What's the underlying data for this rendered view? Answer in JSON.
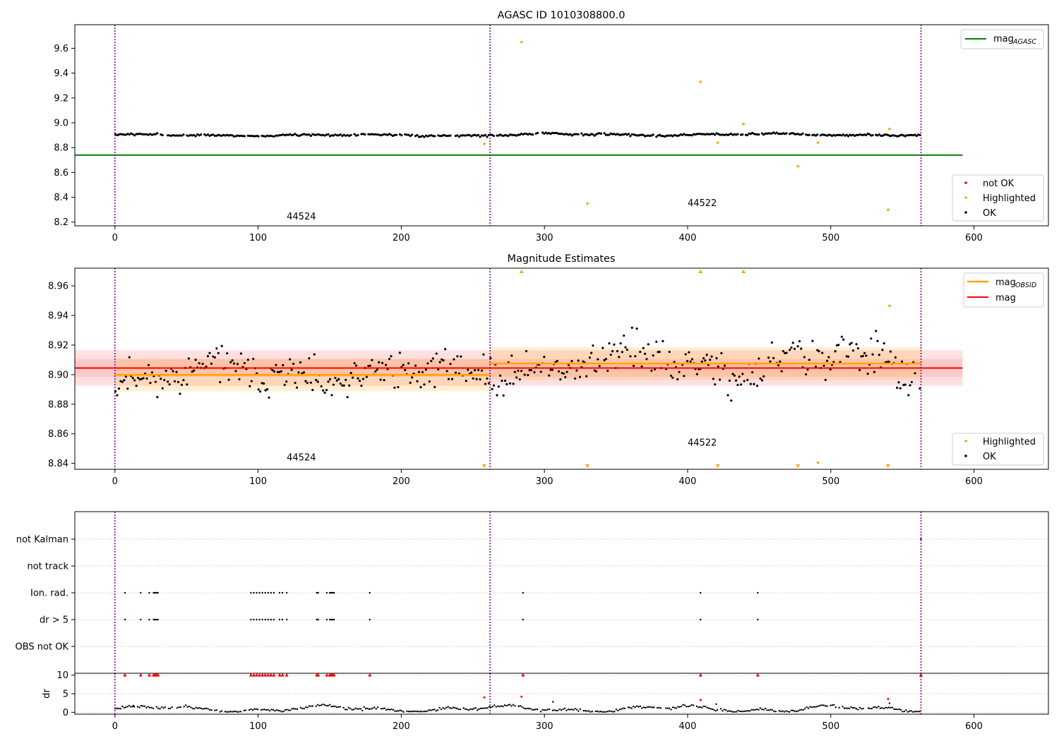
{
  "chart_data": [
    {
      "type": "scatter",
      "title": "AGASC ID 1010308800.0",
      "xlim": [
        -28,
        652
      ],
      "ylim": [
        8.17,
        9.79
      ],
      "xticks": [
        0,
        100,
        200,
        300,
        400,
        500,
        600
      ],
      "yticks": [
        8.2,
        8.4,
        8.6,
        8.8,
        9.0,
        9.2,
        9.4,
        9.6
      ],
      "obsid_boundaries": [
        0,
        262,
        563
      ],
      "obsid_labels": [
        {
          "text": "44524",
          "x": 120,
          "y": 8.22
        },
        {
          "text": "44522",
          "x": 400,
          "y": 8.33
        }
      ],
      "mag_aca": {
        "label": "mag",
        "sub": "AGASC",
        "value": 8.74,
        "x0": -28,
        "x1": 592,
        "color": "#008000"
      },
      "ok_segments": [
        {
          "x0": 0,
          "x1": 262,
          "mean": 8.9,
          "wave": 0.008,
          "noise": 0.006,
          "count": 215
        },
        {
          "x0": 262,
          "x1": 563,
          "mean": 8.905,
          "wave": 0.01,
          "noise": 0.006,
          "count": 265
        }
      ],
      "highlighted": [
        {
          "x": 258,
          "y": 8.83
        },
        {
          "x": 284,
          "y": 9.65
        },
        {
          "x": 330,
          "y": 8.35
        },
        {
          "x": 409,
          "y": 9.33
        },
        {
          "x": 421,
          "y": 8.84
        },
        {
          "x": 439,
          "y": 8.99
        },
        {
          "x": 477,
          "y": 8.65
        },
        {
          "x": 491,
          "y": 8.84
        },
        {
          "x": 540,
          "y": 8.3
        },
        {
          "x": 541,
          "y": 8.95
        }
      ],
      "legend_top": [
        {
          "label": "mag",
          "sub": "AGASC",
          "color": "#008000"
        }
      ],
      "legend_bottom": [
        {
          "label": "not OK",
          "color": "#ff0000"
        },
        {
          "label": "Highlighted",
          "color": "#ffa500"
        },
        {
          "label": "OK",
          "color": "#000000"
        }
      ]
    },
    {
      "type": "scatter",
      "title": "Magnitude Estimates",
      "xlim": [
        -28,
        652
      ],
      "ylim": [
        8.836,
        8.972
      ],
      "xticks": [
        0,
        100,
        200,
        300,
        400,
        500,
        600
      ],
      "yticks": [
        8.84,
        8.86,
        8.88,
        8.9,
        8.92,
        8.94,
        8.96
      ],
      "obsid_boundaries": [
        0,
        262,
        563
      ],
      "obsid_labels": [
        {
          "text": "44524",
          "x": 120,
          "y": 8.842
        },
        {
          "text": "44522",
          "x": 400,
          "y": 8.852
        }
      ],
      "mag_total": {
        "label": "mag",
        "value": 8.9045,
        "band1": [
          8.8925,
          8.9165
        ],
        "band2": [
          8.8985,
          8.9105
        ],
        "x0": -28,
        "x1": 592,
        "color": "#ff0000"
      },
      "mag_obsid": [
        {
          "x0": 0,
          "x1": 262,
          "value": 8.8998,
          "band": [
            8.8888,
            8.9108
          ]
        },
        {
          "x0": 262,
          "x1": 563,
          "value": 8.9075,
          "band": [
            8.8965,
            8.9185
          ]
        }
      ],
      "ok_segments": [
        {
          "x0": 0,
          "x1": 262,
          "mean": 8.9,
          "wave": 0.009,
          "noise": 0.0085,
          "count": 215
        },
        {
          "x0": 262,
          "x1": 563,
          "mean": 8.907,
          "wave": 0.011,
          "noise": 0.0095,
          "count": 265
        }
      ],
      "highlighted": [
        {
          "x": 491,
          "y": 8.8405
        },
        {
          "x": 541,
          "y": 8.9465
        }
      ],
      "clipped_up": [
        284,
        409,
        439
      ],
      "clipped_down": [
        258,
        330,
        421,
        477,
        540
      ],
      "legend_top": [
        {
          "label": "mag",
          "sub": "OBSID",
          "color": "#ffa500"
        },
        {
          "label": "mag",
          "color": "#ff0000"
        }
      ],
      "legend_bottom": [
        {
          "label": "Highlighted",
          "color": "#ffa500"
        },
        {
          "label": "OK",
          "color": "#000000"
        }
      ]
    },
    {
      "type": "scatter",
      "title": "",
      "xlim": [
        -28,
        652
      ],
      "xticks": [
        0,
        100,
        200,
        300,
        400,
        500,
        600
      ],
      "obsid_boundaries": [
        0,
        262,
        563
      ],
      "flag_rows": [
        "not Kalman",
        "not track",
        "Ion. rad.",
        "dr > 5",
        "OBS not OK"
      ],
      "flag_points": {
        "Ion. rad.": [
          7,
          18,
          24,
          27,
          28,
          29,
          30,
          95,
          97,
          99,
          101,
          103,
          105,
          107,
          109,
          111,
          115,
          117,
          120,
          141,
          142,
          148,
          150,
          151,
          152,
          153,
          178,
          285,
          409,
          449
        ],
        "dr > 5": [
          7,
          18,
          24,
          27,
          28,
          29,
          30,
          95,
          97,
          99,
          101,
          103,
          105,
          107,
          109,
          111,
          115,
          117,
          120,
          141,
          142,
          148,
          150,
          151,
          152,
          153,
          178,
          285,
          409,
          449
        ],
        "not Kalman": [
          563
        ]
      },
      "dr_ylabel": "dr",
      "dr_ylim": [
        -0.5,
        10.5
      ],
      "dr_yticks": [
        0,
        5,
        10
      ],
      "dr_capped": [
        7,
        18,
        24,
        27,
        28,
        29,
        30,
        95,
        97,
        99,
        101,
        103,
        105,
        107,
        109,
        111,
        115,
        117,
        120,
        141,
        142,
        148,
        150,
        151,
        152,
        153,
        178,
        285,
        409,
        449,
        563
      ],
      "dr_red": [
        {
          "x": 258,
          "y": 4.0
        },
        {
          "x": 284,
          "y": 4.2
        },
        {
          "x": 409,
          "y": 3.3
        },
        {
          "x": 540,
          "y": 3.6
        }
      ],
      "dr_extra": [
        {
          "x": 13,
          "y": 1.8
        },
        {
          "x": 306,
          "y": 2.8
        },
        {
          "x": 420,
          "y": 2.2
        },
        {
          "x": 541,
          "y": 2.4
        }
      ]
    }
  ]
}
